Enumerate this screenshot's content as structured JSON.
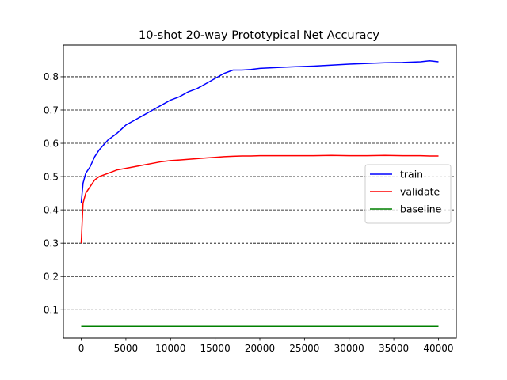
{
  "chart_data": {
    "type": "line",
    "title": "10-shot 20-way Prototypical Net Accuracy",
    "xlabel": "",
    "ylabel": "",
    "xlim": [
      -2000,
      42000
    ],
    "ylim": [
      0.015,
      0.895
    ],
    "x_ticks": [
      0,
      5000,
      10000,
      15000,
      20000,
      25000,
      30000,
      35000,
      40000
    ],
    "y_ticks": [
      0.1,
      0.2,
      0.3,
      0.4,
      0.5,
      0.6,
      0.7,
      0.8
    ],
    "grid": "horizontal dashed",
    "legend_position": "center-right",
    "x": [
      0,
      200,
      500,
      1000,
      1500,
      2000,
      3000,
      4000,
      5000,
      6000,
      7000,
      8000,
      9000,
      10000,
      11000,
      12000,
      13000,
      14000,
      15000,
      16000,
      17000,
      18000,
      19000,
      20000,
      22000,
      24000,
      26000,
      28000,
      30000,
      32000,
      34000,
      36000,
      38000,
      39000,
      40000
    ],
    "series": [
      {
        "name": "train",
        "color": "#0000ff",
        "values": [
          0.42,
          0.48,
          0.51,
          0.53,
          0.56,
          0.58,
          0.61,
          0.63,
          0.655,
          0.67,
          0.685,
          0.7,
          0.715,
          0.73,
          0.74,
          0.755,
          0.765,
          0.78,
          0.795,
          0.81,
          0.82,
          0.82,
          0.822,
          0.825,
          0.828,
          0.83,
          0.832,
          0.835,
          0.838,
          0.84,
          0.842,
          0.843,
          0.845,
          0.848,
          0.845
        ]
      },
      {
        "name": "validate",
        "color": "#ff0000",
        "values": [
          0.3,
          0.42,
          0.45,
          0.47,
          0.49,
          0.5,
          0.51,
          0.52,
          0.525,
          0.53,
          0.535,
          0.54,
          0.545,
          0.548,
          0.55,
          0.552,
          0.554,
          0.556,
          0.558,
          0.56,
          0.561,
          0.562,
          0.562,
          0.563,
          0.563,
          0.563,
          0.563,
          0.564,
          0.563,
          0.563,
          0.564,
          0.563,
          0.563,
          0.562,
          0.562
        ]
      },
      {
        "name": "baseline",
        "color": "#008000",
        "values": [
          0.05,
          0.05,
          0.05,
          0.05,
          0.05,
          0.05,
          0.05,
          0.05,
          0.05,
          0.05,
          0.05,
          0.05,
          0.05,
          0.05,
          0.05,
          0.05,
          0.05,
          0.05,
          0.05,
          0.05,
          0.05,
          0.05,
          0.05,
          0.05,
          0.05,
          0.05,
          0.05,
          0.05,
          0.05,
          0.05,
          0.05,
          0.05,
          0.05,
          0.05,
          0.05
        ]
      }
    ]
  }
}
